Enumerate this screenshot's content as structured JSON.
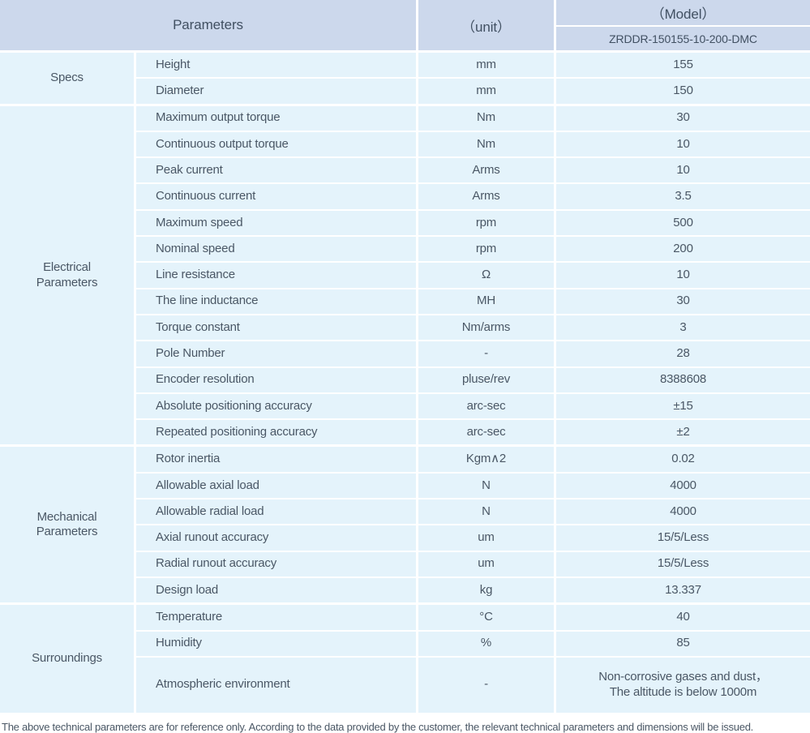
{
  "colors": {
    "header_bg": "#ccd8ec",
    "body_bg": "#e4f3fb",
    "grid_line": "#ffffff",
    "text": "#4a5765"
  },
  "table": {
    "header": {
      "parameters_label": "Parameters",
      "unit_label": "（unit）",
      "model_label": "（Model）",
      "model_value": "ZRDDR-150155-10-200-DMC"
    },
    "sections": [
      {
        "category": "Specs",
        "rows": [
          {
            "param": "Height",
            "unit": "mm",
            "value": "155"
          },
          {
            "param": "Diameter",
            "unit": "mm",
            "value": "150"
          }
        ]
      },
      {
        "category": "Electrical Parameters",
        "rows": [
          {
            "param": "Maximum output torque",
            "unit": "Nm",
            "value": "30"
          },
          {
            "param": "Continuous output torque",
            "unit": "Nm",
            "value": "10"
          },
          {
            "param": "Peak current",
            "unit": "Arms",
            "value": "10"
          },
          {
            "param": "Continuous current",
            "unit": "Arms",
            "value": "3.5"
          },
          {
            "param": "Maximum speed",
            "unit": "rpm",
            "value": "500"
          },
          {
            "param": "Nominal speed",
            "unit": "rpm",
            "value": "200"
          },
          {
            "param": "Line resistance",
            "unit": "Ω",
            "value": "10"
          },
          {
            "param": "The line inductance",
            "unit": "MH",
            "value": "30"
          },
          {
            "param": "Torque constant",
            "unit": "Nm/arms",
            "value": "3"
          },
          {
            "param": "Pole Number",
            "unit": "-",
            "value": "28"
          },
          {
            "param": "Encoder resolution",
            "unit": "pluse/rev",
            "value": "8388608"
          },
          {
            "param": "Absolute positioning accuracy",
            "unit": "arc-sec",
            "value": "±15"
          },
          {
            "param": "Repeated positioning accuracy",
            "unit": "arc-sec",
            "value": "±2"
          }
        ]
      },
      {
        "category": "Mechanical Parameters",
        "rows": [
          {
            "param": "Rotor inertia",
            "unit": "Kgm∧2",
            "value": "0.02"
          },
          {
            "param": "Allowable axial load",
            "unit": "N",
            "value": "4000"
          },
          {
            "param": "Allowable radial load",
            "unit": "N",
            "value": "4000"
          },
          {
            "param": "Axial runout accuracy",
            "unit": "um",
            "value": "15/5/Less"
          },
          {
            "param": "Radial runout accuracy",
            "unit": "um",
            "value": "15/5/Less"
          },
          {
            "param": "Design load",
            "unit": "kg",
            "value": "13.337"
          }
        ]
      },
      {
        "category": "Surroundings",
        "rows": [
          {
            "param": "Temperature",
            "unit": "°C",
            "value": "40"
          },
          {
            "param": "Humidity",
            "unit": "%",
            "value": "85"
          },
          {
            "param": "Atmospheric environment",
            "unit": "-",
            "value": "Non-corrosive gases and dust，",
            "value2": "The altitude is below 1000m",
            "tall": true
          }
        ]
      }
    ]
  },
  "footer": {
    "note": "The above technical parameters are for reference only. According to the data provided by the customer, the relevant technical parameters and dimensions will be issued."
  }
}
